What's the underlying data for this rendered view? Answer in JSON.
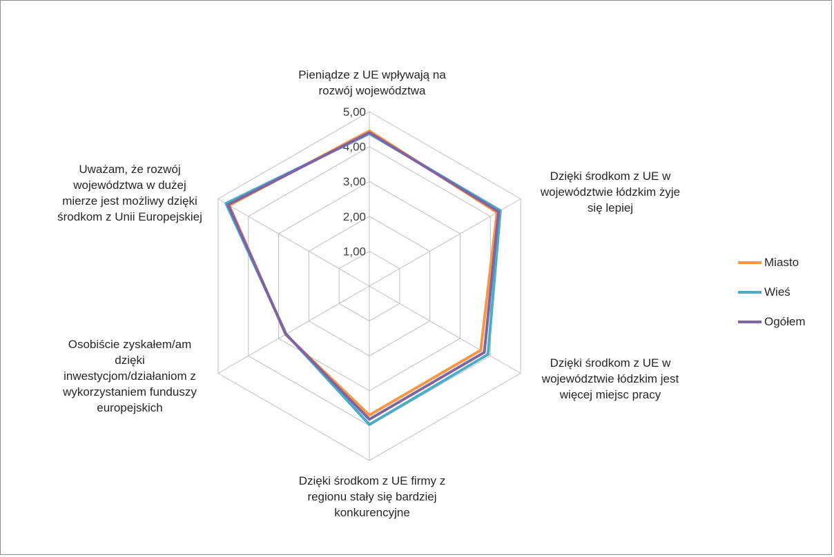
{
  "chart_data": {
    "type": "radar",
    "axes": [
      "Pieniądze z UE wpływają na\nrozwój województwa",
      "Dzięki środkom z UE w\nwojewództwie łódzkim żyje\nsię lepiej",
      "Dzięki środkom z UE w\nwojewództwie łódzkim jest\nwięcej miejsc pracy",
      "Dzięki środkom z UE firmy z\nregionu stały się bardziej\nkonkurencyjne",
      "Osobiście zyskałem/am\ndzięki\ninwestycjom/działaniom z\nwykorzystaniem funduszy\neuropejskich",
      "Uważam, że rozwój\nwojewództwa w dużej\nmierze jest możliwy dzięki\nśrodkom z Unii Europejskiej"
    ],
    "ticks": [
      "1,00",
      "2,00",
      "3,00",
      "4,00",
      "5,00"
    ],
    "range": [
      0,
      5
    ],
    "series": [
      {
        "name": "Miasto",
        "color": "#F79646",
        "values": [
          4.45,
          4.22,
          3.68,
          3.7,
          2.77,
          4.63
        ]
      },
      {
        "name": "Wieś",
        "color": "#4BACC6",
        "values": [
          4.37,
          4.33,
          3.92,
          3.97,
          2.75,
          4.74
        ]
      },
      {
        "name": "Ogółem",
        "color": "#8064A2",
        "values": [
          4.4,
          4.27,
          3.8,
          3.82,
          2.76,
          4.67
        ]
      }
    ],
    "legend_position": "right",
    "grid": true
  }
}
